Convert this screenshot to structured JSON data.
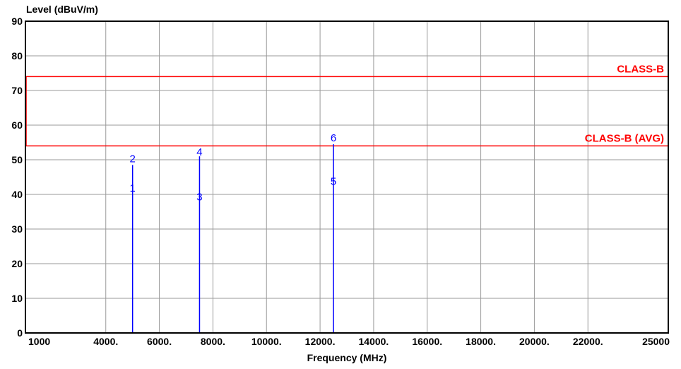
{
  "chart_data": {
    "type": "line",
    "title": "",
    "ylabel": "Level (dBuV/m)",
    "xlabel": "Frequency (MHz)",
    "xlim": [
      1000,
      25000
    ],
    "ylim": [
      0,
      90
    ],
    "grid": true,
    "x_ticks": [
      {
        "value": 1000,
        "label": "1000"
      },
      {
        "value": 4000,
        "label": "4000."
      },
      {
        "value": 6000,
        "label": "6000."
      },
      {
        "value": 8000,
        "label": "8000."
      },
      {
        "value": 10000,
        "label": "10000."
      },
      {
        "value": 12000,
        "label": "12000."
      },
      {
        "value": 14000,
        "label": "14000."
      },
      {
        "value": 16000,
        "label": "16000."
      },
      {
        "value": 18000,
        "label": "18000."
      },
      {
        "value": 20000,
        "label": "20000."
      },
      {
        "value": 22000,
        "label": "22000."
      },
      {
        "value": 25000,
        "label": "25000"
      }
    ],
    "y_ticks": [
      0,
      10,
      20,
      30,
      40,
      50,
      60,
      70,
      80,
      90
    ],
    "limit_lines": [
      {
        "name": "CLASS-B",
        "value": 74,
        "color": "#ff0000"
      },
      {
        "name": "CLASS-B (AVG)",
        "value": 54,
        "color": "#ff0000"
      }
    ],
    "spikes": [
      {
        "x": 5000,
        "y": 48.5
      },
      {
        "x": 7500,
        "y": 51
      },
      {
        "x": 12500,
        "y": 54.5
      }
    ],
    "markers": [
      {
        "label": "1",
        "x": 5000,
        "y": 42
      },
      {
        "label": "2",
        "x": 5000,
        "y": 50.5
      },
      {
        "label": "3",
        "x": 7500,
        "y": 39.5
      },
      {
        "label": "4",
        "x": 7500,
        "y": 52.5
      },
      {
        "label": "5",
        "x": 12500,
        "y": 44
      },
      {
        "label": "6",
        "x": 12500,
        "y": 56.5
      }
    ],
    "series_color": "#0000ff"
  }
}
